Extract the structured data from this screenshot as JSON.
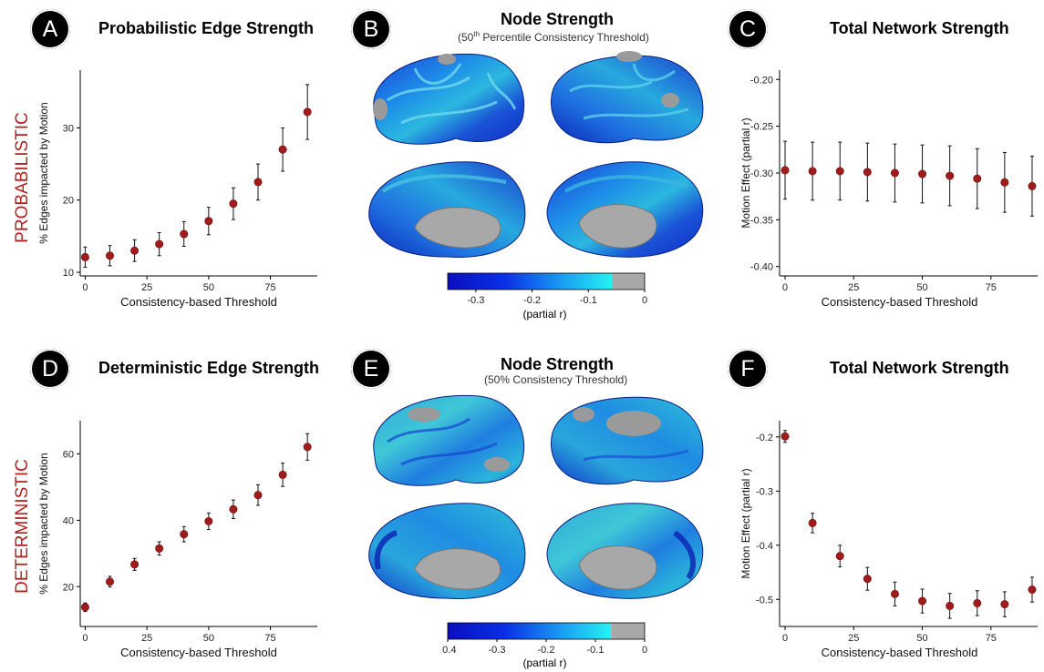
{
  "row_labels": {
    "top": "PROBABILISTIC",
    "bottom": "DETERMINISTIC"
  },
  "panels": {
    "A": {
      "letter": "A",
      "title": "Probabilistic Edge Strength"
    },
    "B": {
      "letter": "B",
      "title": "Node Strength",
      "subtitle_pre": "(50",
      "subtitle_sup": "th",
      "subtitle_post": " Percentile Consistency Threshold)"
    },
    "C": {
      "letter": "C",
      "title": "Total Network Strength"
    },
    "D": {
      "letter": "D",
      "title": "Deterministic Edge Strength"
    },
    "E": {
      "letter": "E",
      "title": "Node Strength",
      "subtitle": "(50% Consistency Threshold)"
    },
    "F": {
      "letter": "F",
      "title": "Total Network Strength"
    }
  },
  "colorbars": {
    "B": {
      "ticks": [
        "-0.3",
        "-0.2",
        "-0.1",
        "0"
      ],
      "tick_values": [
        -0.3,
        -0.2,
        -0.1,
        0
      ],
      "min": -0.35,
      "max": 0,
      "gray_from": -0.058,
      "label": "(partial r)"
    },
    "E": {
      "ticks": [
        "-0.4",
        "-0.3",
        "-0.2",
        "-0.1",
        "0"
      ],
      "tick_values": [
        -0.4,
        -0.3,
        -0.2,
        -0.1,
        0
      ],
      "min": -0.4,
      "max": 0,
      "gray_from": -0.068,
      "label": "(partial r)"
    }
  },
  "colors": {
    "marker": "#a01c1c",
    "row_label": "#b22222",
    "brain_gray": "#9a9a9a"
  },
  "chart_data": [
    {
      "panel": "A",
      "type": "scatter",
      "xlabel": "Consistency-based Threshold",
      "ylabel": "% Edges impacted by Motion",
      "xlim": [
        -2,
        94
      ],
      "ylim": [
        9.5,
        38
      ],
      "xticks": [
        0,
        25,
        50,
        75
      ],
      "yticks": [
        10,
        20,
        30
      ],
      "x": [
        0,
        10,
        20,
        30,
        40,
        50,
        60,
        70,
        80,
        90
      ],
      "y": [
        12.1,
        12.3,
        13.0,
        13.9,
        15.3,
        17.1,
        19.5,
        22.5,
        27.0,
        32.2
      ],
      "err": [
        1.4,
        1.4,
        1.5,
        1.6,
        1.7,
        1.9,
        2.2,
        2.5,
        3.0,
        3.8
      ]
    },
    {
      "panel": "C",
      "type": "scatter",
      "xlabel": "Consistency-based Threshold",
      "ylabel": "Motion Effect (partial r)",
      "xlim": [
        -2,
        92
      ],
      "ylim": [
        -0.41,
        -0.19
      ],
      "xticks": [
        0,
        25,
        50,
        75
      ],
      "yticks": [
        -0.2,
        -0.25,
        -0.3,
        -0.35,
        -0.4
      ],
      "ytick_labels": [
        "-0.20",
        "-0.25",
        "-0.30",
        "-0.35",
        "-0.40"
      ],
      "x": [
        0,
        10,
        20,
        30,
        40,
        50,
        60,
        70,
        80,
        90
      ],
      "y": [
        -0.297,
        -0.298,
        -0.298,
        -0.299,
        -0.3,
        -0.301,
        -0.303,
        -0.306,
        -0.31,
        -0.314
      ],
      "err": [
        0.031,
        0.031,
        0.031,
        0.031,
        0.031,
        0.031,
        0.032,
        0.032,
        0.032,
        0.032
      ]
    },
    {
      "panel": "D",
      "type": "scatter",
      "xlabel": "Consistency-based Threshold",
      "ylabel": "% Edges impacted by Motion",
      "xlim": [
        -2,
        94
      ],
      "ylim": [
        8,
        70
      ],
      "xticks": [
        0,
        25,
        50,
        75
      ],
      "yticks": [
        20,
        40,
        60
      ],
      "x": [
        0,
        10,
        20,
        30,
        40,
        50,
        60,
        70,
        80,
        90
      ],
      "y": [
        13.8,
        21.5,
        26.7,
        31.5,
        35.8,
        39.7,
        43.3,
        47.6,
        53.7,
        62.1
      ],
      "err": [
        1.3,
        1.6,
        1.8,
        2.0,
        2.3,
        2.5,
        2.8,
        3.1,
        3.5,
        4.0
      ]
    },
    {
      "panel": "F",
      "type": "scatter",
      "xlabel": "Consistency-based Threshold",
      "ylabel": "Motion Effect (partial r)",
      "xlim": [
        -2,
        92
      ],
      "ylim": [
        -0.55,
        -0.17
      ],
      "xticks": [
        0,
        25,
        50,
        75
      ],
      "yticks": [
        -0.2,
        -0.3,
        -0.4,
        -0.5
      ],
      "ytick_labels": [
        "-0.2",
        "-0.3",
        "-0.4",
        "-0.5"
      ],
      "x": [
        0,
        10,
        20,
        30,
        40,
        50,
        60,
        70,
        80,
        90
      ],
      "y": [
        -0.199,
        -0.359,
        -0.42,
        -0.462,
        -0.49,
        -0.503,
        -0.512,
        -0.507,
        -0.509,
        -0.482
      ],
      "err": [
        0.011,
        0.018,
        0.02,
        0.021,
        0.022,
        0.022,
        0.023,
        0.023,
        0.023,
        0.023
      ]
    }
  ]
}
